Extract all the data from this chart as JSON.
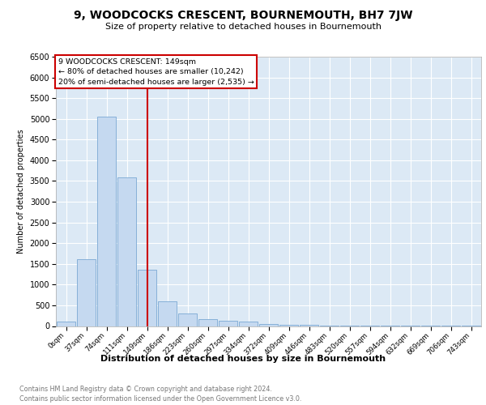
{
  "title": "9, WOODCOCKS CRESCENT, BOURNEMOUTH, BH7 7JW",
  "subtitle": "Size of property relative to detached houses in Bournemouth",
  "xlabel": "Distribution of detached houses by size in Bournemouth",
  "ylabel": "Number of detached properties",
  "footnote1": "Contains HM Land Registry data © Crown copyright and database right 2024.",
  "footnote2": "Contains public sector information licensed under the Open Government Licence v3.0.",
  "annotation_line1": "9 WOODCOCKS CRESCENT: 149sqm",
  "annotation_line2": "← 80% of detached houses are smaller (10,242)",
  "annotation_line3": "20% of semi-detached houses are larger (2,535) →",
  "bar_labels": [
    "0sqm",
    "37sqm",
    "74sqm",
    "111sqm",
    "149sqm",
    "186sqm",
    "223sqm",
    "260sqm",
    "297sqm",
    "334sqm",
    "372sqm",
    "409sqm",
    "446sqm",
    "483sqm",
    "520sqm",
    "557sqm",
    "594sqm",
    "632sqm",
    "669sqm",
    "706sqm",
    "743sqm"
  ],
  "bar_values": [
    100,
    1620,
    5060,
    3580,
    1350,
    590,
    300,
    175,
    125,
    100,
    50,
    30,
    20,
    10,
    8,
    5,
    3,
    2,
    2,
    1,
    1
  ],
  "bar_color": "#c5d9f0",
  "bar_edge_color": "#7aa8d4",
  "red_line_index": 4,
  "ylim": [
    0,
    6500
  ],
  "yticks": [
    0,
    500,
    1000,
    1500,
    2000,
    2500,
    3000,
    3500,
    4000,
    4500,
    5000,
    5500,
    6000,
    6500
  ],
  "plot_bg_color": "#dce9f5",
  "title_fontsize": 10,
  "subtitle_fontsize": 8,
  "annotation_box_color": "#ffffff",
  "annotation_box_edge": "#cc0000",
  "red_line_color": "#cc0000",
  "footnote_color": "#777777"
}
